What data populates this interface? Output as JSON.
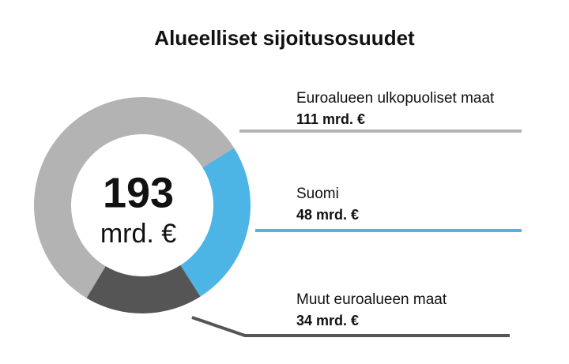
{
  "chart_data": {
    "type": "donut",
    "title": "Alueelliset sijoitusosuudet",
    "categories": [
      "Euroalueen ulkopuoliset maat",
      "Suomi",
      "Muut euroalueen maat"
    ],
    "values": [
      111,
      48,
      34
    ],
    "value_labels": [
      "111 mrd. €",
      "48 mrd. €",
      "34 mrd. €"
    ],
    "colors": [
      "#b3b3b3",
      "#4db4e6",
      "#555555"
    ],
    "total": 193,
    "total_unit": "mrd. €"
  }
}
